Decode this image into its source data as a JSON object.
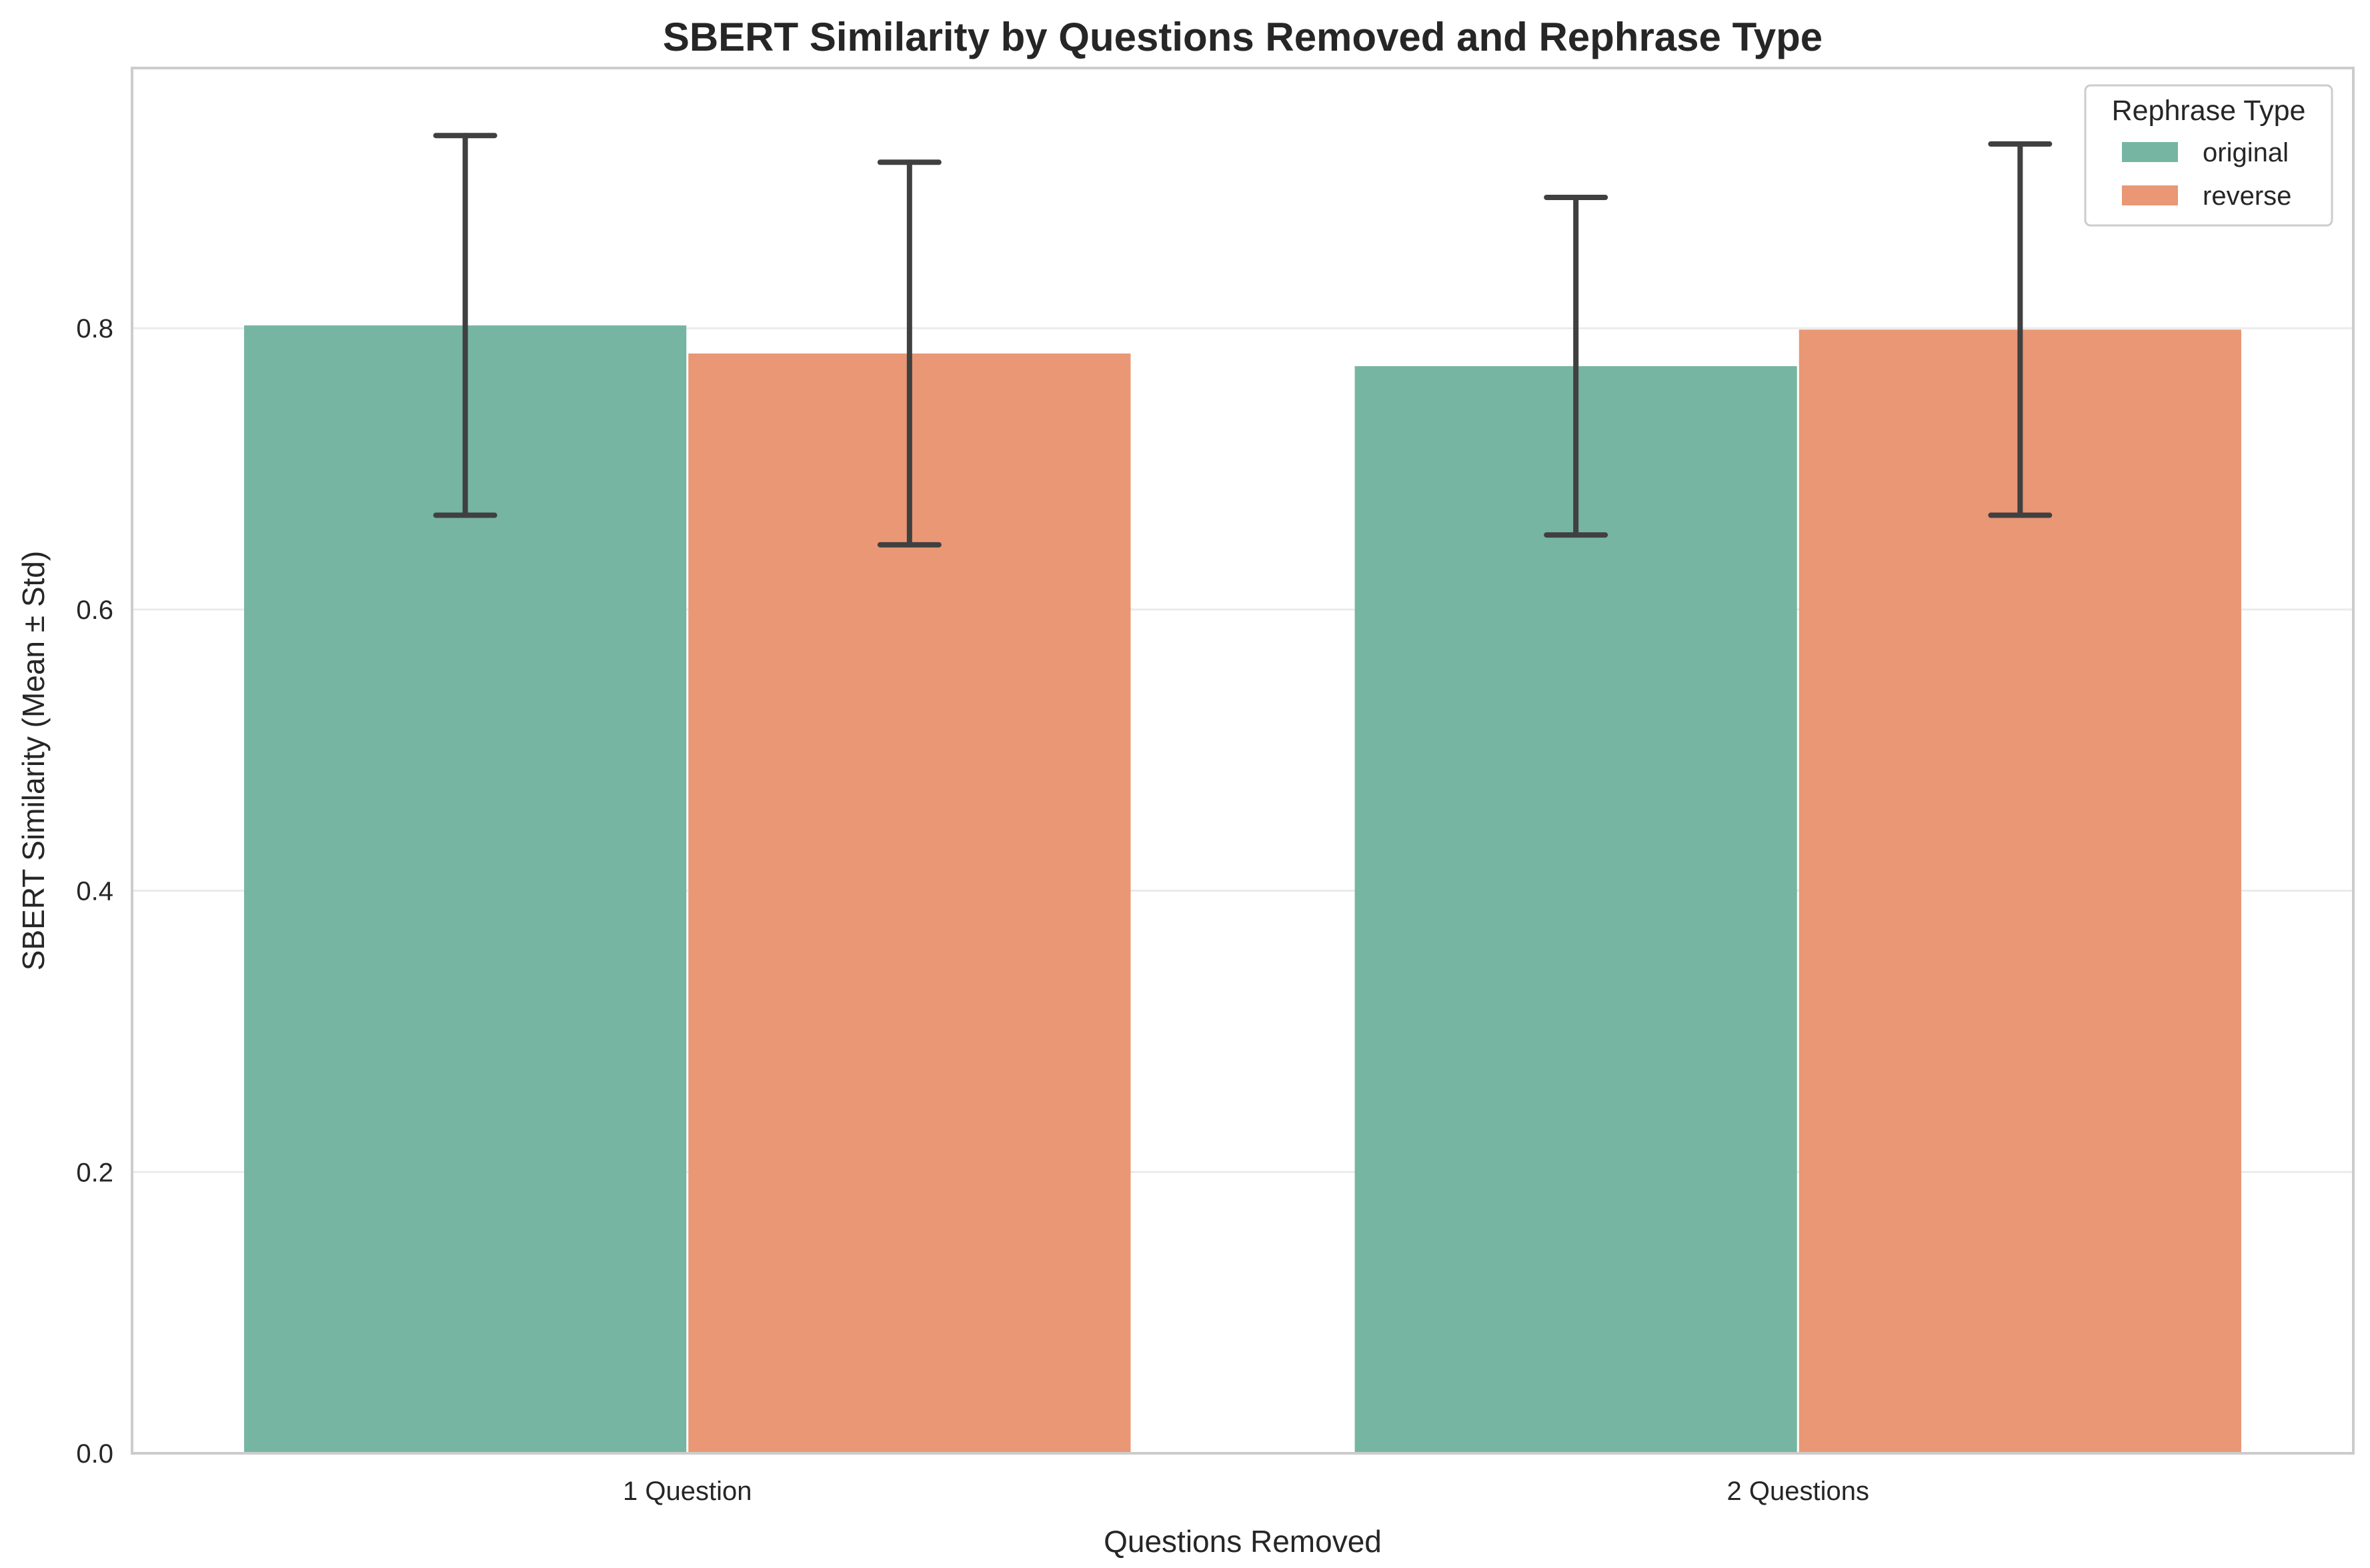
{
  "chart_data": {
    "type": "bar",
    "title": "SBERT Similarity by Questions Removed and Rephrase Type",
    "xlabel": "Questions Removed",
    "ylabel": "SBERT Similarity (Mean ± Std)",
    "categories": [
      "1 Question",
      "2 Questions"
    ],
    "series": [
      {
        "name": "original",
        "color": "#76b5a1",
        "values": [
          0.802,
          0.773
        ],
        "std": [
          0.135,
          0.12
        ]
      },
      {
        "name": "reverse",
        "color": "#e99775",
        "values": [
          0.782,
          0.799
        ],
        "std": [
          0.136,
          0.132
        ]
      }
    ],
    "ylim": [
      0,
      0.985
    ],
    "yticks": [
      0.0,
      0.2,
      0.4,
      0.6,
      0.8
    ],
    "ytick_labels": [
      "0.0",
      "0.2",
      "0.4",
      "0.6",
      "0.8"
    ],
    "grid": "horizontal",
    "legend": {
      "title": "Rephrase Type",
      "placement": "top-right"
    },
    "errorbar_color": "#404040"
  }
}
